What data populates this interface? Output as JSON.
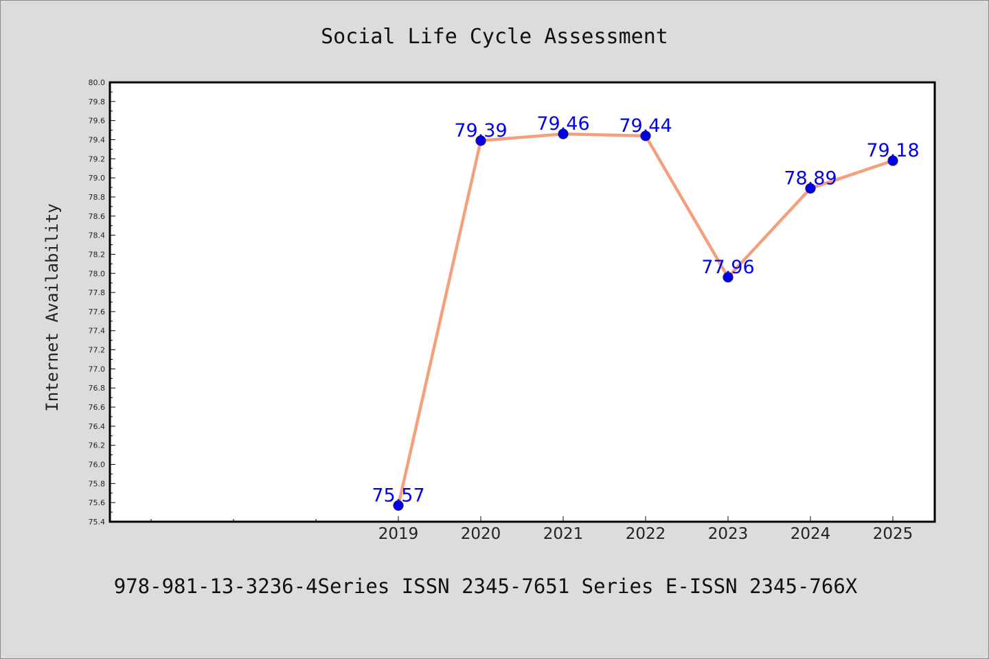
{
  "chart_data": {
    "type": "line",
    "title": "Social Life Cycle Assessment",
    "xlabel": "",
    "ylabel": "Internet Availability",
    "categories": [
      "2019",
      "2020",
      "2021",
      "2022",
      "2023",
      "2024",
      "2025"
    ],
    "data_labels": [
      "75.57",
      "79.39",
      "79.46",
      "79.44",
      "77.96",
      "78.89",
      "79.18"
    ],
    "series": [
      {
        "values": [
          75.57,
          79.39,
          79.46,
          79.44,
          77.96,
          78.89,
          79.18
        ]
      }
    ],
    "ylim": [
      75.4,
      80.0
    ],
    "yticks": [
      "75.4",
      "75.6",
      "75.8",
      "76.0",
      "76.2",
      "76.4",
      "76.6",
      "76.8",
      "77.0",
      "77.2",
      "77.4",
      "77.6",
      "77.8",
      "78.0",
      "78.2",
      "78.4",
      "78.6",
      "78.8",
      "79.0",
      "79.2",
      "79.4",
      "79.6",
      "79.8",
      "80.0"
    ],
    "grid": false,
    "legend": "none",
    "colors": {
      "line": "#f4a07e",
      "marker": "#0000ee",
      "marker_edge": "#1a1a66",
      "data_label": "#0000ee",
      "background": "#dcdcdc",
      "plot_background": "#ffffff"
    },
    "footer": "978-981-13-3236-4Series ISSN 2345-7651 Series E-ISSN 2345-766X"
  }
}
